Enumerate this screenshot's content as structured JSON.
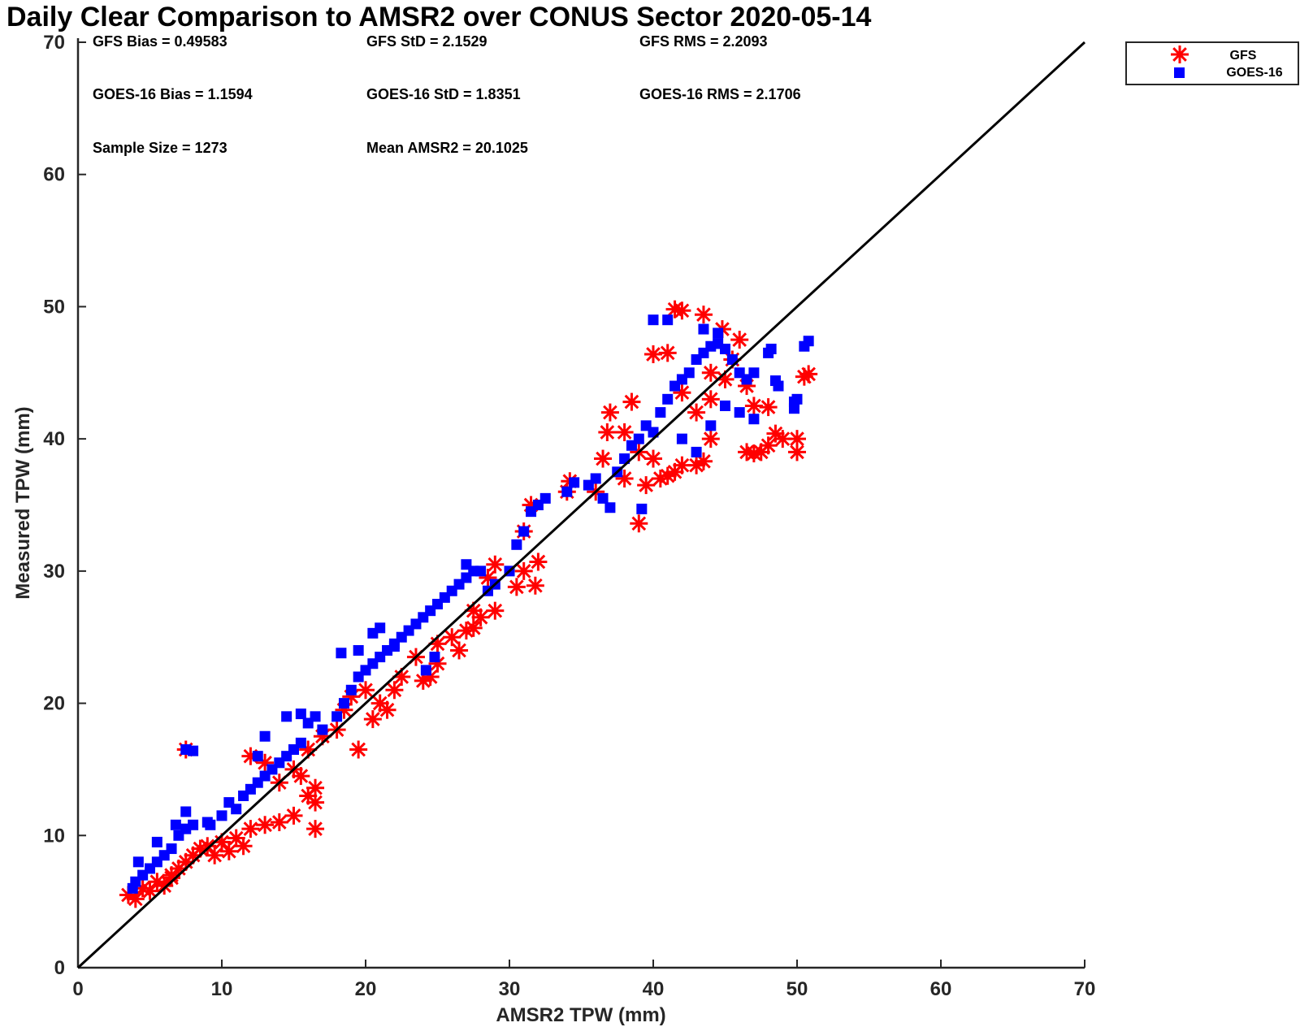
{
  "chart_data": {
    "type": "scatter",
    "title": "Daily Clear Comparison to AMSR2 over CONUS Sector 2020-05-14",
    "xlabel": "AMSR2 TPW (mm)",
    "ylabel": "Measured TPW (mm)",
    "xlim": [
      0,
      70
    ],
    "ylim": [
      0,
      70
    ],
    "xticks": [
      0,
      10,
      20,
      30,
      40,
      50,
      60,
      70
    ],
    "yticks": [
      0,
      10,
      20,
      30,
      40,
      50,
      60,
      70
    ],
    "grid": false,
    "legend_position": "outside-top-right",
    "reference_line": {
      "from": [
        0,
        0
      ],
      "to": [
        70,
        70
      ],
      "color": "#000000"
    },
    "stats": [
      "GFS Bias = 0.49583",
      "GFS StD = 2.1529",
      "GFS RMS = 2.2093",
      "GOES-16 Bias = 1.1594",
      "GOES-16 StD = 1.8351",
      "GOES-16 RMS = 2.1706",
      "Sample Size = 1273",
      "Mean AMSR2 = 20.1025"
    ],
    "series": [
      {
        "name": "GFS",
        "marker": "asterisk",
        "color": "#ff0000",
        "points": [
          [
            3.5,
            5.5
          ],
          [
            4,
            5.2
          ],
          [
            4.5,
            6
          ],
          [
            5,
            5.8
          ],
          [
            5.5,
            6.5
          ],
          [
            6,
            6.2
          ],
          [
            6.5,
            7
          ],
          [
            7,
            7.5
          ],
          [
            7.5,
            8
          ],
          [
            8,
            8.5
          ],
          [
            8.5,
            9
          ],
          [
            9,
            9.2
          ],
          [
            10,
            9.5
          ],
          [
            11,
            9.8
          ],
          [
            12,
            10.5
          ],
          [
            13,
            10.8
          ],
          [
            14,
            11
          ],
          [
            15,
            11.5
          ],
          [
            16.5,
            10.5
          ],
          [
            16.5,
            12.5
          ],
          [
            7.5,
            16.5
          ],
          [
            12,
            16
          ],
          [
            13,
            15.5
          ],
          [
            14,
            14
          ],
          [
            15,
            15
          ],
          [
            16,
            16.5
          ],
          [
            17,
            17.5
          ],
          [
            18,
            18
          ],
          [
            18.5,
            19.5
          ],
          [
            19.5,
            16.5
          ],
          [
            19,
            20.5
          ],
          [
            20,
            21
          ],
          [
            21,
            20
          ],
          [
            22,
            21
          ],
          [
            22.5,
            22
          ],
          [
            23.5,
            23.5
          ],
          [
            24.5,
            22
          ],
          [
            25,
            24.5
          ],
          [
            26,
            25
          ],
          [
            26.5,
            24
          ],
          [
            27,
            25.5
          ],
          [
            27.5,
            27
          ],
          [
            28.5,
            29.5
          ],
          [
            29,
            30.5
          ],
          [
            30.5,
            28.8
          ],
          [
            31,
            30
          ],
          [
            31.5,
            35
          ],
          [
            31.8,
            28.9
          ],
          [
            32,
            30.7
          ],
          [
            31,
            33
          ],
          [
            34,
            36
          ],
          [
            34.2,
            36.8
          ],
          [
            36,
            36
          ],
          [
            36.5,
            38.5
          ],
          [
            37,
            42
          ],
          [
            36.8,
            40.5
          ],
          [
            38,
            37
          ],
          [
            39,
            33.6
          ],
          [
            39.5,
            36.5
          ],
          [
            39,
            39
          ],
          [
            40,
            38.5
          ],
          [
            40.5,
            37
          ],
          [
            41,
            37.2
          ],
          [
            41.5,
            37.5
          ],
          [
            42,
            38
          ],
          [
            43,
            38
          ],
          [
            43.5,
            38.3
          ],
          [
            40,
            46.4
          ],
          [
            41,
            46.5
          ],
          [
            41.5,
            49.8
          ],
          [
            42,
            49.7
          ],
          [
            43.5,
            49.4
          ],
          [
            44.8,
            48.3
          ],
          [
            45.5,
            46
          ],
          [
            46,
            47.5
          ],
          [
            44,
            45
          ],
          [
            45,
            44.5
          ],
          [
            46.5,
            44
          ],
          [
            47,
            42.5
          ],
          [
            48,
            42.4
          ],
          [
            46.5,
            39
          ],
          [
            47,
            38.9
          ],
          [
            47.5,
            39
          ],
          [
            48,
            39.5
          ],
          [
            48.5,
            40.4
          ],
          [
            49,
            40
          ],
          [
            50,
            39
          ],
          [
            50,
            40
          ],
          [
            50.5,
            44.7
          ],
          [
            50.8,
            44.9
          ],
          [
            44,
            43
          ],
          [
            43,
            42
          ],
          [
            42,
            43.5
          ],
          [
            44,
            40
          ],
          [
            38,
            40.5
          ],
          [
            38.5,
            42.8
          ],
          [
            29,
            27
          ],
          [
            28,
            26.5
          ],
          [
            27.5,
            25.7
          ],
          [
            25,
            23
          ],
          [
            24,
            21.7
          ],
          [
            21.5,
            19.5
          ],
          [
            20.5,
            18.8
          ],
          [
            16.5,
            13.6
          ],
          [
            16,
            13
          ],
          [
            15.5,
            14.5
          ],
          [
            11.5,
            9.2
          ],
          [
            10.5,
            8.8
          ],
          [
            9.5,
            8.5
          ],
          [
            6.5,
            6.8
          ]
        ]
      },
      {
        "name": "GOES-16",
        "marker": "square",
        "color": "#0000ff",
        "points": [
          [
            4,
            6.5
          ],
          [
            4.5,
            7
          ],
          [
            5,
            7.5
          ],
          [
            5.5,
            8
          ],
          [
            6,
            8.5
          ],
          [
            6.5,
            9
          ],
          [
            7,
            10
          ],
          [
            7.5,
            10.5
          ],
          [
            8,
            10.8
          ],
          [
            9,
            11
          ],
          [
            10,
            11.5
          ],
          [
            10.5,
            12.5
          ],
          [
            11,
            12
          ],
          [
            11.5,
            13
          ],
          [
            12,
            13.5
          ],
          [
            12.5,
            14
          ],
          [
            13,
            14.5
          ],
          [
            13.5,
            15
          ],
          [
            14,
            15.5
          ],
          [
            14.5,
            16
          ],
          [
            15,
            16.5
          ],
          [
            15.5,
            17
          ],
          [
            16,
            18.5
          ],
          [
            16.5,
            19
          ],
          [
            17,
            18
          ],
          [
            18,
            19
          ],
          [
            18.5,
            20
          ],
          [
            19,
            21
          ],
          [
            19.5,
            22
          ],
          [
            20,
            22.5
          ],
          [
            20.5,
            23
          ],
          [
            21,
            23.5
          ],
          [
            21.5,
            24
          ],
          [
            22,
            24.5
          ],
          [
            22.5,
            25
          ],
          [
            23,
            25.5
          ],
          [
            23.5,
            26
          ],
          [
            24,
            26.5
          ],
          [
            24.5,
            27
          ],
          [
            25,
            27.5
          ],
          [
            25.5,
            28
          ],
          [
            26,
            28.5
          ],
          [
            26.5,
            29
          ],
          [
            27,
            29.5
          ],
          [
            27.5,
            30
          ],
          [
            28,
            30
          ],
          [
            29,
            29
          ],
          [
            28.5,
            28.5
          ],
          [
            30,
            30
          ],
          [
            30.5,
            32
          ],
          [
            31,
            33
          ],
          [
            31.5,
            34.5
          ],
          [
            32,
            35
          ],
          [
            32.5,
            35.5
          ],
          [
            34,
            36
          ],
          [
            34.5,
            36.7
          ],
          [
            35.5,
            36.5
          ],
          [
            36,
            37
          ],
          [
            36.5,
            35.5
          ],
          [
            37,
            34.8
          ],
          [
            37.5,
            37.5
          ],
          [
            38,
            38.5
          ],
          [
            38.5,
            39.5
          ],
          [
            39,
            40
          ],
          [
            39.2,
            34.7
          ],
          [
            39.5,
            41
          ],
          [
            40,
            40.5
          ],
          [
            40.5,
            42
          ],
          [
            41,
            43
          ],
          [
            41.5,
            44
          ],
          [
            42,
            44.5
          ],
          [
            42.5,
            45
          ],
          [
            43,
            46
          ],
          [
            43.5,
            46.5
          ],
          [
            44,
            47
          ],
          [
            44.5,
            47.2
          ],
          [
            45,
            46.8
          ],
          [
            45.5,
            46
          ],
          [
            46,
            45
          ],
          [
            46.5,
            44.5
          ],
          [
            40,
            49
          ],
          [
            41,
            49
          ],
          [
            43.5,
            48.3
          ],
          [
            44.5,
            48
          ],
          [
            47,
            45
          ],
          [
            48,
            46.5
          ],
          [
            48.2,
            46.8
          ],
          [
            48.5,
            44.4
          ],
          [
            48.7,
            44
          ],
          [
            49.8,
            42.8
          ],
          [
            50,
            43
          ],
          [
            49.8,
            42.3
          ],
          [
            50.5,
            47
          ],
          [
            50.8,
            47.4
          ],
          [
            42,
            40
          ],
          [
            43,
            39
          ],
          [
            44,
            41
          ],
          [
            45,
            42.5
          ],
          [
            46,
            42
          ],
          [
            47,
            41.5
          ],
          [
            7.5,
            16.5
          ],
          [
            8,
            16.4
          ],
          [
            7.5,
            11.8
          ],
          [
            3.8,
            6
          ],
          [
            4.2,
            8
          ],
          [
            5.5,
            9.5
          ],
          [
            6.8,
            10.8
          ],
          [
            9.2,
            10.8
          ],
          [
            12.5,
            16
          ],
          [
            13,
            17.5
          ],
          [
            14.5,
            19
          ],
          [
            15.5,
            19.2
          ],
          [
            18.3,
            23.8
          ],
          [
            19.5,
            24
          ],
          [
            20.5,
            25.3
          ],
          [
            21,
            25.7
          ],
          [
            22,
            24.3
          ],
          [
            24.2,
            22.5
          ],
          [
            24.8,
            23.5
          ],
          [
            27,
            30.5
          ]
        ]
      }
    ]
  },
  "legend": [
    {
      "label": "GFS",
      "marker": "asterisk",
      "color": "#ff0000"
    },
    {
      "label": "GOES-16",
      "marker": "square",
      "color": "#0000ff"
    }
  ]
}
